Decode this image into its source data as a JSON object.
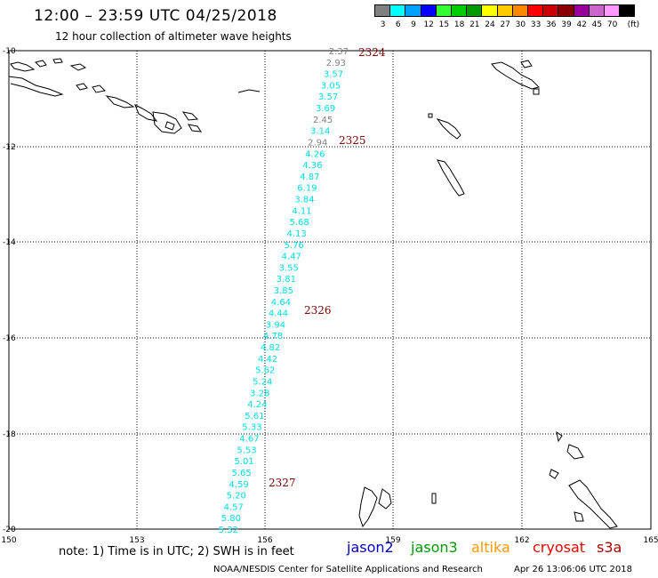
{
  "header": {
    "title": "12:00 – 23:59 UTC 04/25/2018",
    "subtitle": "12 hour collection of altimeter wave heights"
  },
  "legend": {
    "unit": "(ft)",
    "swatches": [
      {
        "label": "3",
        "color": "#808080"
      },
      {
        "label": "6",
        "color": "#00ffff"
      },
      {
        "label": "9",
        "color": "#00a0ff"
      },
      {
        "label": "12",
        "color": "#0000ff"
      },
      {
        "label": "15",
        "color": "#33ff33"
      },
      {
        "label": "18",
        "color": "#00cc00"
      },
      {
        "label": "21",
        "color": "#009900"
      },
      {
        "label": "24",
        "color": "#ffff00"
      },
      {
        "label": "27",
        "color": "#ffcc00"
      },
      {
        "label": "30",
        "color": "#ff8800"
      },
      {
        "label": "33",
        "color": "#ff0000"
      },
      {
        "label": "36",
        "color": "#cc0000"
      },
      {
        "label": "39",
        "color": "#880000"
      },
      {
        "label": "42",
        "color": "#990099"
      },
      {
        "label": "45",
        "color": "#cc66cc"
      },
      {
        "label": "70",
        "color": "#ff99ff"
      },
      {
        "label": "",
        "color": "#000000"
      }
    ]
  },
  "map": {
    "lat_labels": [
      "-10",
      "-12",
      "-14",
      "-16",
      "-18",
      "-20"
    ],
    "lon_labels": [
      "150",
      "153",
      "156",
      "159",
      "162",
      "165"
    ],
    "pass_labels": [
      "2324",
      "2325",
      "2326",
      "2327"
    ],
    "wave_heights": [
      "2.37",
      "2.93",
      "3.57",
      "3.05",
      "3.57",
      "3.69",
      "2.45",
      "3.14",
      "2.94",
      "4.26",
      "4.36",
      "4.87",
      "6.19",
      "3.84",
      "4.11",
      "5.68",
      "4.13",
      "5.76",
      "4.47",
      "3.55",
      "3.81",
      "3.85",
      "4.64",
      "4.44",
      "3.94",
      "4.78",
      "4.82",
      "4.42",
      "5.62",
      "5.24",
      "3.28",
      "4.24",
      "5.61",
      "5.33",
      "4.67",
      "5.53",
      "5.01",
      "5.65",
      "4.59",
      "5.20",
      "4.57",
      "5.80",
      "5.32"
    ],
    "wave_colors": [
      "#808080",
      "#808080",
      "#00e0e0",
      "#00e0e0",
      "#00e0e0",
      "#00e0e0",
      "#808080",
      "#00e0e0",
      "#808080",
      "#00e0e0",
      "#00e0e0",
      "#00e0e0",
      "#00e0e0",
      "#00e0e0",
      "#00e0e0",
      "#00e0e0",
      "#00e0e0",
      "#00e0e0",
      "#00e0e0",
      "#00e0e0",
      "#00e0e0",
      "#00e0e0",
      "#00e0e0",
      "#00e0e0",
      "#00e0e0",
      "#00e0e0",
      "#00e0e0",
      "#00e0e0",
      "#00e0e0",
      "#00e0e0",
      "#00e0e0",
      "#00e0e0",
      "#00e0e0",
      "#00e0e0",
      "#00e0e0",
      "#00e0e0",
      "#00e0e0",
      "#00e0e0",
      "#00e0e0",
      "#00e0e0",
      "#00e0e0",
      "#00e0e0",
      "#00e0e0"
    ]
  },
  "footer": {
    "note": "note:  1) Time is in UTC;  2) SWH is in feet",
    "satellites": [
      {
        "name": "jason2",
        "color": "#0000cc"
      },
      {
        "name": "jason3",
        "color": "#009900"
      },
      {
        "name": "altika",
        "color": "#ff9900"
      },
      {
        "name": "cryosat",
        "color": "#ee0000"
      },
      {
        "name": "s3a",
        "color": "#aa0000"
      }
    ],
    "credit": "NOAA/NESDIS Center for Satellite Applications and Research",
    "timestamp": "Apr 26 13:06:06 UTC 2018"
  }
}
